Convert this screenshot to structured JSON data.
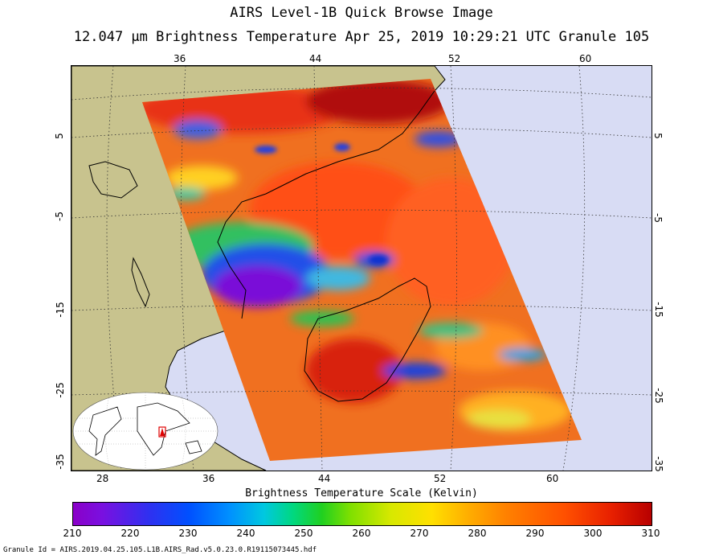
{
  "header": {
    "title": "AIRS Level-1B Quick Browse Image",
    "subtitle": "12.047 μm Brightness Temperature    Apr 25, 2019 10:29:21 UTC   Granule 105"
  },
  "top_longitudes": [
    "36",
    "44",
    "52",
    "60"
  ],
  "bottom_longitudes": [
    "28",
    "36",
    "44",
    "52",
    "60"
  ],
  "left_latitudes": [
    "5",
    "-5",
    "-15",
    "-25",
    "-35"
  ],
  "right_latitudes": [
    "5",
    "-5",
    "-15",
    "-25",
    "-35"
  ],
  "colors": {
    "land": "#c8c38e",
    "ocean": "#d8dcf4",
    "coastline": "#000000"
  },
  "colorbar": {
    "title": "Brightness Temperature Scale (Kelvin)",
    "ticks": [
      "210",
      "220",
      "230",
      "240",
      "250",
      "260",
      "270",
      "280",
      "290",
      "300",
      "310"
    ],
    "min": 210,
    "max": 310
  },
  "footer": "Granule Id = AIRS.2019.04.25.105.L1B.AIRS_Rad.v5.0.23.0.R19115073445.hdf"
}
